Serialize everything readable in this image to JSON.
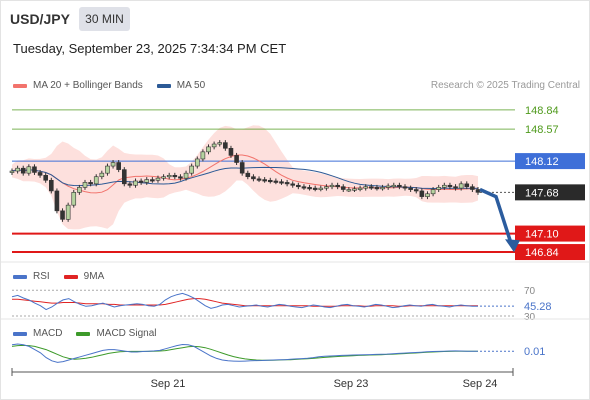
{
  "header": {
    "symbol": "USD/JPY",
    "timeframe": "30 MIN",
    "datetime": "Tuesday, September 23, 2025 7:34:34 PM CET",
    "credit": "Research © 2025 Trading Central"
  },
  "legends": {
    "main": [
      {
        "label": "MA 20 + Bollinger Bands",
        "color": "#f2736c"
      },
      {
        "label": "MA 50",
        "color": "#2c5a96"
      }
    ],
    "rsi": [
      {
        "label": "RSI",
        "color": "#4a74c9"
      },
      {
        "label": "9MA",
        "color": "#e02424"
      }
    ],
    "macd": [
      {
        "label": "MACD",
        "color": "#4a74c9"
      },
      {
        "label": "MACD Signal",
        "color": "#3d9a2a"
      }
    ]
  },
  "chart_data": [
    {
      "type": "candlestick",
      "name": "price",
      "ylim": [
        146.7,
        149.05
      ],
      "levels": [
        {
          "value": 148.84,
          "label": "148.84",
          "kind": "resistance",
          "color": "#4f9a1c"
        },
        {
          "value": 148.57,
          "label": "148.57",
          "kind": "resistance",
          "color": "#4f9a1c"
        },
        {
          "value": 148.12,
          "label": "148.12",
          "kind": "pivot",
          "color": "#3e6fd8"
        },
        {
          "value": 147.68,
          "label": "147.68",
          "kind": "last",
          "color": "#2a2a2a"
        },
        {
          "value": 147.1,
          "label": "147.10",
          "kind": "support",
          "color": "#e01818"
        },
        {
          "value": 146.84,
          "label": "146.84",
          "kind": "support",
          "color": "#e01818"
        }
      ],
      "close_series": [
        147.98,
        148.02,
        147.95,
        148.04,
        147.96,
        147.92,
        147.85,
        147.7,
        147.42,
        147.3,
        147.5,
        147.68,
        147.75,
        147.82,
        147.8,
        147.9,
        147.95,
        148.05,
        148.1,
        148.0,
        147.8,
        147.78,
        147.84,
        147.82,
        147.86,
        147.85,
        147.88,
        147.9,
        147.92,
        147.9,
        147.88,
        147.95,
        148.05,
        148.15,
        148.25,
        148.32,
        148.36,
        148.38,
        148.3,
        148.2,
        148.1,
        147.95,
        147.9,
        147.87,
        147.86,
        147.85,
        147.84,
        147.83,
        147.82,
        147.8,
        147.78,
        147.76,
        147.75,
        147.74,
        147.73,
        147.74,
        147.76,
        147.78,
        147.76,
        147.72,
        147.72,
        147.73,
        147.74,
        147.76,
        147.75,
        147.74,
        147.75,
        147.77,
        147.78,
        147.76,
        147.74,
        147.72,
        147.7,
        147.62,
        147.66,
        147.72,
        147.75,
        147.78,
        147.76,
        147.74,
        147.8,
        147.76,
        147.72,
        147.68
      ],
      "projection": [
        [
          147.72,
          147.62
        ],
        [
          147.18,
          146.88
        ]
      ],
      "x_ticks": [
        "Sep 21",
        "Sep 23",
        "Sep 24"
      ]
    },
    {
      "type": "line",
      "name": "RSI",
      "ylim": [
        30,
        75
      ],
      "labels": [
        {
          "value": 70,
          "text": "70"
        },
        {
          "value": 45.28,
          "text": "45.28"
        },
        {
          "value": 30,
          "text": "30"
        }
      ],
      "rsi": [
        60,
        62,
        58,
        55,
        50,
        46,
        40,
        44,
        50,
        55,
        57,
        52,
        48,
        45,
        46,
        48,
        50,
        47,
        44,
        46,
        47,
        48,
        49,
        48,
        46,
        45,
        48,
        55,
        60,
        63,
        65,
        62,
        58,
        52,
        46,
        42,
        44,
        47,
        48,
        46,
        44,
        45,
        46,
        47,
        45,
        44,
        46,
        48,
        47,
        45,
        44,
        43,
        45,
        47,
        46,
        44,
        43,
        45,
        47,
        48,
        46,
        45,
        44,
        46,
        48,
        47,
        45,
        43,
        44,
        46,
        47,
        46,
        45,
        47,
        48,
        46,
        45,
        44,
        46,
        47,
        46,
        45,
        45.28
      ],
      "ma9": [
        56,
        56,
        55,
        54,
        53,
        52,
        51,
        50,
        50,
        51,
        51,
        51,
        50,
        49,
        49,
        49,
        49,
        48,
        48,
        47,
        47,
        47,
        47,
        47,
        47,
        47,
        47,
        48,
        50,
        52,
        54,
        56,
        57,
        57,
        56,
        54,
        52,
        50,
        49,
        48,
        47,
        46,
        46,
        46,
        46,
        46,
        46,
        46,
        46,
        46,
        46,
        46,
        46,
        45,
        45,
        45,
        45,
        45,
        46,
        46,
        46,
        46,
        45,
        45,
        46,
        46,
        46,
        46,
        45,
        45,
        46,
        46,
        46,
        46,
        46,
        46,
        46,
        46,
        46,
        46,
        46,
        46,
        46
      ]
    },
    {
      "type": "line",
      "name": "MACD",
      "ylim": [
        -0.12,
        0.08
      ],
      "labels": [
        {
          "value": 0.01,
          "text": "0.01"
        }
      ],
      "macd": [
        0.05,
        0.055,
        0.05,
        0.04,
        0.02,
        0.0,
        -0.03,
        -0.05,
        -0.06,
        -0.055,
        -0.045,
        -0.035,
        -0.025,
        -0.015,
        -0.005,
        0.005,
        0.015,
        0.02,
        0.02,
        0.015,
        0.01,
        0.005,
        0.005,
        0.008,
        0.01,
        0.012,
        0.015,
        0.025,
        0.035,
        0.045,
        0.052,
        0.05,
        0.04,
        0.02,
        0.0,
        -0.02,
        -0.035,
        -0.045,
        -0.05,
        -0.052,
        -0.053,
        -0.052,
        -0.05,
        -0.049,
        -0.048,
        -0.046,
        -0.045,
        -0.044,
        -0.043,
        -0.04,
        -0.038,
        -0.036,
        -0.034,
        -0.03,
        -0.025,
        -0.022,
        -0.02,
        -0.018,
        -0.016,
        -0.015,
        -0.014,
        -0.013,
        -0.012,
        -0.011,
        -0.01,
        -0.009,
        -0.008,
        -0.006,
        -0.004,
        -0.002,
        0.0,
        0.002,
        0.004,
        0.006,
        0.008,
        0.009,
        0.01,
        0.011,
        0.012,
        0.011,
        0.01,
        0.01,
        0.01
      ],
      "signal": [
        0.04,
        0.045,
        0.046,
        0.045,
        0.04,
        0.03,
        0.02,
        0.005,
        -0.01,
        -0.025,
        -0.035,
        -0.04,
        -0.038,
        -0.034,
        -0.028,
        -0.02,
        -0.012,
        -0.004,
        0.002,
        0.006,
        0.008,
        0.009,
        0.009,
        0.009,
        0.009,
        0.01,
        0.011,
        0.014,
        0.02,
        0.026,
        0.032,
        0.038,
        0.04,
        0.038,
        0.032,
        0.022,
        0.01,
        -0.002,
        -0.014,
        -0.024,
        -0.032,
        -0.038,
        -0.042,
        -0.045,
        -0.046,
        -0.046,
        -0.046,
        -0.045,
        -0.044,
        -0.043,
        -0.041,
        -0.039,
        -0.037,
        -0.035,
        -0.032,
        -0.029,
        -0.026,
        -0.024,
        -0.022,
        -0.02,
        -0.018,
        -0.016,
        -0.015,
        -0.014,
        -0.013,
        -0.012,
        -0.01,
        -0.009,
        -0.007,
        -0.005,
        -0.003,
        -0.001,
        0.001,
        0.003,
        0.005,
        0.007,
        0.008,
        0.009,
        0.01,
        0.01,
        0.01,
        0.01,
        0.01
      ]
    }
  ]
}
